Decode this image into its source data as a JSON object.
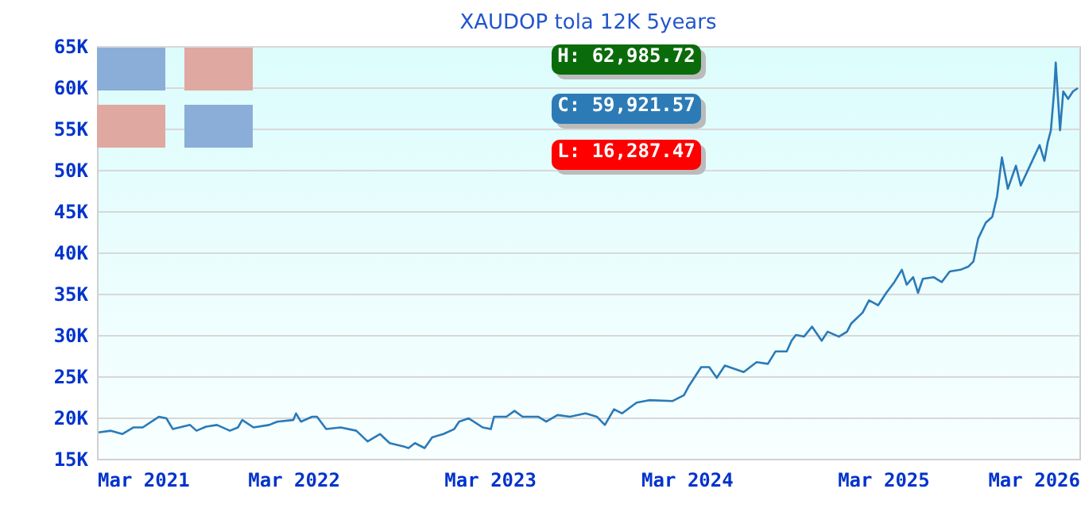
{
  "chart_data": {
    "type": "line",
    "title": "XAUDOP tola 12K 5years",
    "x": [
      "2021-03-04",
      "2021-03-27",
      "2021-04-17",
      "2021-05-08",
      "2021-05-25",
      "2021-06-15",
      "2021-06-24",
      "2021-07-08",
      "2021-07-20",
      "2021-08-21",
      "2021-09-02",
      "2021-09-20",
      "2021-10-10",
      "2021-11-03",
      "2021-11-18",
      "2021-11-26",
      "2021-12-17",
      "2022-01-15",
      "2022-01-30",
      "2022-03-01",
      "2022-03-06",
      "2022-03-15",
      "2022-04-05",
      "2022-04-14",
      "2022-05-01",
      "2022-05-28",
      "2022-06-26",
      "2022-07-17",
      "2022-08-09",
      "2022-08-27",
      "2022-09-22",
      "2022-10-01",
      "2022-10-13",
      "2022-10-31",
      "2022-11-14",
      "2022-12-05",
      "2022-12-25",
      "2023-01-03",
      "2023-01-21",
      "2023-02-16",
      "2023-03-03",
      "2023-03-09",
      "2023-04-01",
      "2023-04-16",
      "2023-05-01",
      "2023-05-30",
      "2023-06-14",
      "2023-07-05",
      "2023-07-28",
      "2023-08-26",
      "2023-09-16",
      "2023-10-01",
      "2023-10-18",
      "2023-11-02",
      "2023-11-29",
      "2023-12-22",
      "2024-02-04",
      "2024-02-25",
      "2024-03-05",
      "2024-03-28",
      "2024-04-12",
      "2024-04-26",
      "2024-05-11",
      "2024-06-15",
      "2024-07-09",
      "2024-07-30",
      "2024-08-13",
      "2024-09-03",
      "2024-09-12",
      "2024-09-20",
      "2024-10-05",
      "2024-10-20",
      "2024-11-07",
      "2024-11-18",
      "2024-12-09",
      "2024-12-24",
      "2025-01-01",
      "2025-01-22",
      "2025-02-03",
      "2025-02-20",
      "2025-03-07",
      "2025-03-22",
      "2025-04-05",
      "2025-04-14",
      "2025-04-26",
      "2025-05-05",
      "2025-05-14",
      "2025-06-03",
      "2025-06-18",
      "2025-07-03",
      "2025-07-23",
      "2025-08-07",
      "2025-08-16",
      "2025-08-25",
      "2025-09-08",
      "2025-09-20",
      "2025-09-29",
      "2025-10-05",
      "2025-10-08",
      "2025-10-19",
      "2025-11-03",
      "2025-11-12",
      "2025-11-27",
      "2025-12-17",
      "2025-12-26",
      "2026-01-01",
      "2026-01-07",
      "2026-01-13",
      "2026-01-16",
      "2026-01-24",
      "2026-01-30",
      "2026-02-08",
      "2026-02-17",
      "2026-02-26"
    ],
    "series": [
      {
        "color": "#2a7ab8",
        "values": [
          18200,
          18400,
          18000,
          18800,
          18800,
          19700,
          20100,
          19900,
          18600,
          19100,
          18400,
          18900,
          19100,
          18400,
          18800,
          19700,
          18800,
          19100,
          19500,
          19700,
          20500,
          19500,
          20100,
          20100,
          18600,
          18800,
          18400,
          17100,
          18000,
          16900,
          16500,
          16300,
          16900,
          16300,
          17600,
          18000,
          18600,
          19500,
          19900,
          18800,
          18600,
          20100,
          20100,
          20800,
          20100,
          20100,
          19500,
          20300,
          20100,
          20500,
          20100,
          19100,
          21000,
          20500,
          21800,
          22100,
          22000,
          22700,
          23800,
          26100,
          26100,
          24800,
          26300,
          25500,
          26700,
          26500,
          28000,
          28000,
          29300,
          30000,
          29800,
          31000,
          29300,
          30400,
          29800,
          30400,
          31400,
          32700,
          34200,
          33600,
          35100,
          36400,
          37900,
          36100,
          37000,
          35100,
          36800,
          37000,
          36400,
          37700,
          37900,
          38300,
          38900,
          41700,
          43600,
          44300,
          46800,
          50000,
          51500,
          47700,
          50500,
          48100,
          50200,
          53000,
          51100,
          53300,
          54800,
          59500,
          63000,
          54800,
          59500,
          58600,
          59500,
          59900
        ]
      }
    ],
    "xlim": [
      "2021-03-01",
      "2026-03-01"
    ],
    "xticks": [
      {
        "value": "2021-03-01",
        "label": "Mar 2021"
      },
      {
        "value": "2022-03-01",
        "label": "Mar 2022"
      },
      {
        "value": "2023-03-01",
        "label": "Mar 2023"
      },
      {
        "value": "2024-03-01",
        "label": "Mar 2024"
      },
      {
        "value": "2025-03-01",
        "label": "Mar 2025"
      },
      {
        "value": "2026-03-01",
        "label": "Mar 2026"
      }
    ],
    "ylim": [
      15000,
      65000
    ],
    "yticks": [
      {
        "value": 15000,
        "label": "15K"
      },
      {
        "value": 20000,
        "label": "20K"
      },
      {
        "value": 25000,
        "label": "25K"
      },
      {
        "value": 30000,
        "label": "30K"
      },
      {
        "value": 35000,
        "label": "35K"
      },
      {
        "value": 40000,
        "label": "40K"
      },
      {
        "value": 45000,
        "label": "45K"
      },
      {
        "value": 50000,
        "label": "50K"
      },
      {
        "value": 55000,
        "label": "55K"
      },
      {
        "value": 60000,
        "label": "60K"
      },
      {
        "value": 65000,
        "label": "65K"
      }
    ],
    "annotations": [
      "H: 62,985.72",
      "C: 59,921.57",
      "L: 16,287.47"
    ],
    "grid": "y",
    "marker": "none",
    "line_style": "solid"
  }
}
